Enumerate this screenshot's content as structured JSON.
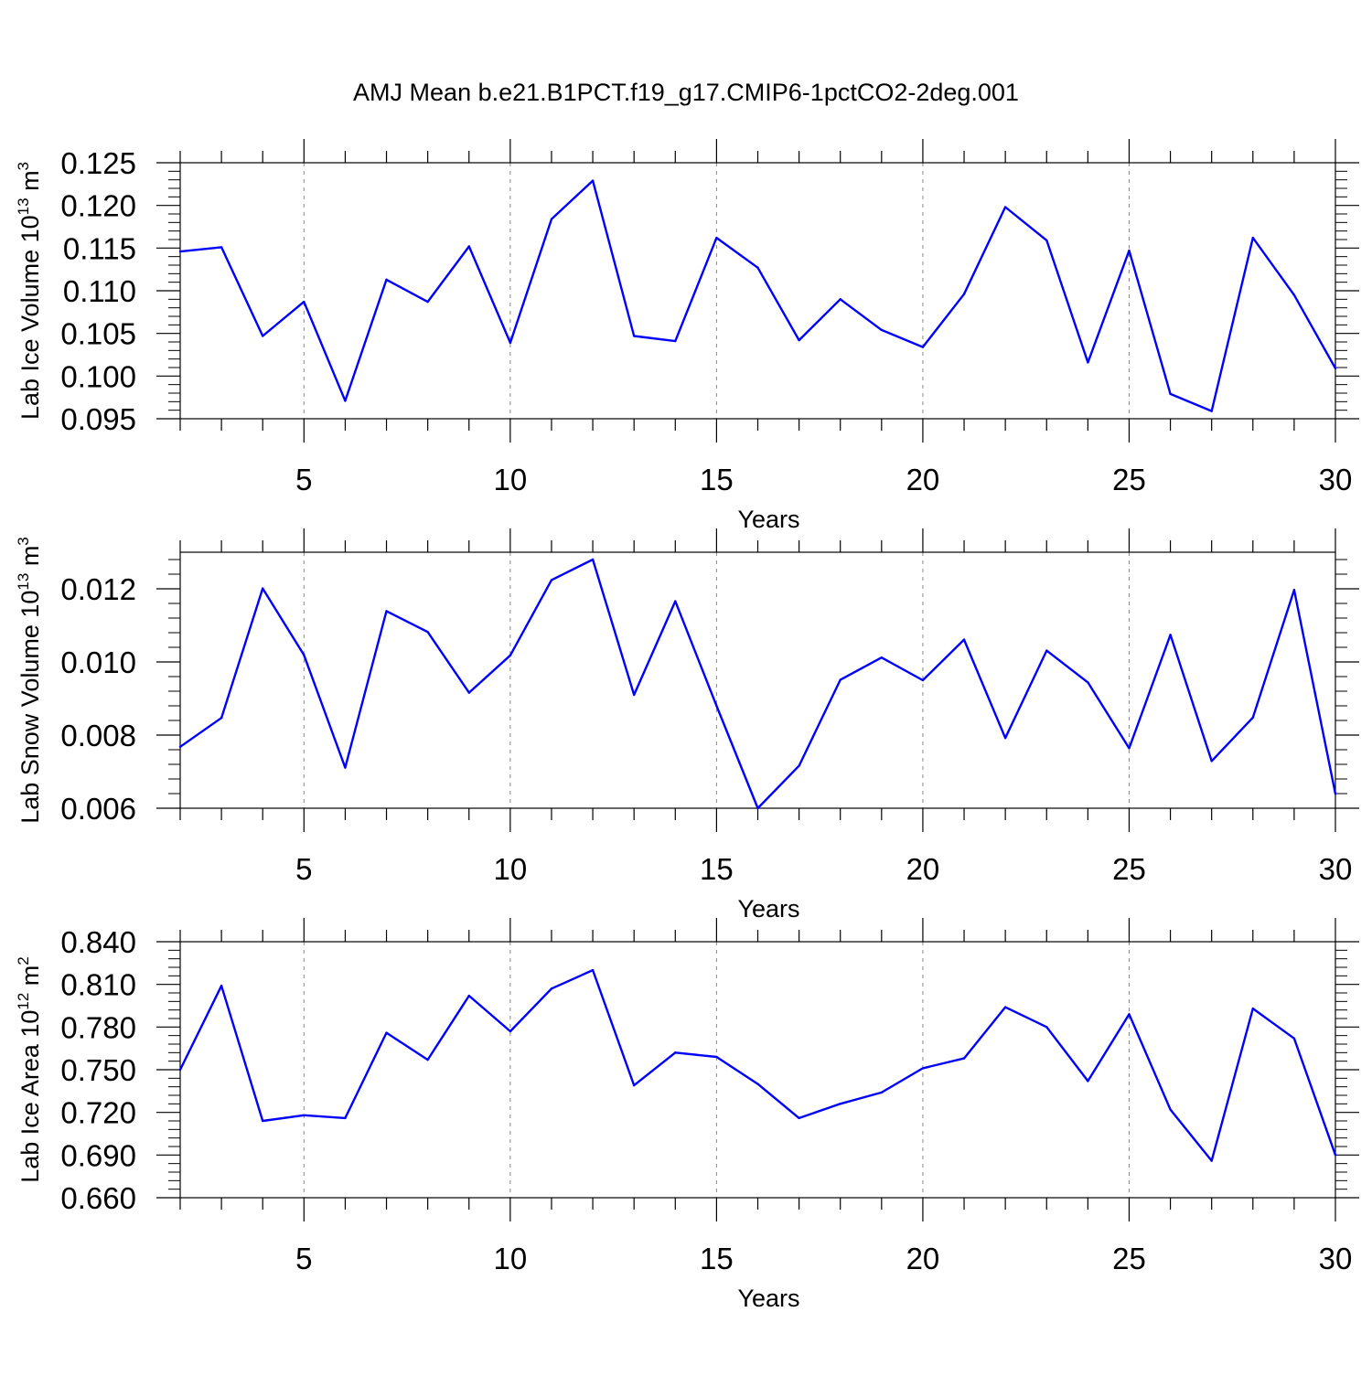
{
  "figure_title": "AMJ Mean b.e21.B1PCT.f19_g17.CMIP6-1pctCO2-2deg.001",
  "colors": {
    "line": "#0000ff",
    "grid": "#888888",
    "axis": "#000000"
  },
  "chart_data": [
    {
      "type": "line",
      "title": "AMJ Mean b.e21.B1PCT.f19_g17.CMIP6-1pctCO2-2deg.001",
      "xlabel": "Years",
      "ylabel_main": "Lab Ice Volume 10",
      "ylabel_exp": "13",
      "ylabel_unit": " m",
      "ylabel_unit_exp": "3",
      "xlim": [
        2,
        30
      ],
      "ylim": [
        0.095,
        0.125
      ],
      "x_ticks": [
        5,
        10,
        15,
        20,
        25,
        30
      ],
      "x_tick_labels": [
        "5",
        "10",
        "15",
        "20",
        "25",
        "30"
      ],
      "y_ticks": [
        0.095,
        0.1,
        0.105,
        0.11,
        0.115,
        0.12,
        0.125
      ],
      "y_tick_labels": [
        "0.095",
        "0.100",
        "0.105",
        "0.110",
        "0.115",
        "0.120",
        "0.125"
      ],
      "grid": "vertical dashed at major x ticks",
      "x": [
        2,
        3,
        4,
        5,
        6,
        7,
        8,
        9,
        10,
        11,
        12,
        13,
        14,
        15,
        16,
        17,
        18,
        19,
        20,
        21,
        22,
        23,
        24,
        25,
        26,
        27,
        28,
        29,
        30
      ],
      "values": [
        0.1146,
        0.1151,
        0.1047,
        0.1087,
        0.0971,
        0.1113,
        0.1087,
        0.1152,
        0.1039,
        0.1184,
        0.1229,
        0.1047,
        0.1041,
        0.1162,
        0.1127,
        0.1042,
        0.109,
        0.1054,
        0.1034,
        0.1096,
        0.1198,
        0.1159,
        0.1016,
        0.1147,
        0.0979,
        0.0959,
        0.1162,
        0.1095,
        0.1009
      ]
    },
    {
      "type": "line",
      "xlabel": "Years",
      "ylabel_main": "Lab Snow Volume 10",
      "ylabel_exp": "13",
      "ylabel_unit": " m",
      "ylabel_unit_exp": "3",
      "xlim": [
        2,
        30
      ],
      "ylim": [
        0.006,
        0.013
      ],
      "x_ticks": [
        5,
        10,
        15,
        20,
        25,
        30
      ],
      "x_tick_labels": [
        "5",
        "10",
        "15",
        "20",
        "25",
        "30"
      ],
      "y_ticks": [
        0.006,
        0.008,
        0.01,
        0.012
      ],
      "y_tick_labels": [
        "0.006",
        "0.008",
        "0.010",
        "0.012"
      ],
      "grid": "vertical dashed at major x ticks",
      "x": [
        2,
        3,
        4,
        5,
        6,
        7,
        8,
        9,
        10,
        11,
        12,
        13,
        14,
        15,
        16,
        17,
        18,
        19,
        20,
        21,
        22,
        23,
        24,
        25,
        26,
        27,
        28,
        29,
        30
      ],
      "values": [
        0.00768,
        0.00847,
        0.01201,
        0.01019,
        0.00711,
        0.01139,
        0.01082,
        0.00916,
        0.01018,
        0.01224,
        0.0128,
        0.0091,
        0.01166,
        0.0088,
        0.006,
        0.00716,
        0.00951,
        0.01012,
        0.0095,
        0.01061,
        0.00792,
        0.01031,
        0.00944,
        0.00764,
        0.01074,
        0.00729,
        0.00848,
        0.01197,
        0.00639
      ]
    },
    {
      "type": "line",
      "xlabel": "Years",
      "ylabel_main": "Lab Ice Area 10",
      "ylabel_exp": "12",
      "ylabel_unit": " m",
      "ylabel_unit_exp": "2",
      "xlim": [
        2,
        30
      ],
      "ylim": [
        0.66,
        0.84
      ],
      "x_ticks": [
        5,
        10,
        15,
        20,
        25,
        30
      ],
      "x_tick_labels": [
        "5",
        "10",
        "15",
        "20",
        "25",
        "30"
      ],
      "y_ticks": [
        0.66,
        0.69,
        0.72,
        0.75,
        0.78,
        0.81,
        0.84
      ],
      "y_tick_labels": [
        "0.660",
        "0.690",
        "0.720",
        "0.750",
        "0.780",
        "0.810",
        "0.840"
      ],
      "grid": "vertical dashed at major x ticks",
      "x": [
        2,
        3,
        4,
        5,
        6,
        7,
        8,
        9,
        10,
        11,
        12,
        13,
        14,
        15,
        16,
        17,
        18,
        19,
        20,
        21,
        22,
        23,
        24,
        25,
        26,
        27,
        28,
        29,
        30
      ],
      "values": [
        0.75,
        0.809,
        0.714,
        0.718,
        0.716,
        0.776,
        0.757,
        0.802,
        0.777,
        0.807,
        0.82,
        0.739,
        0.762,
        0.759,
        0.74,
        0.716,
        0.726,
        0.734,
        0.751,
        0.758,
        0.794,
        0.78,
        0.742,
        0.789,
        0.722,
        0.686,
        0.793,
        0.772,
        0.69
      ]
    }
  ]
}
